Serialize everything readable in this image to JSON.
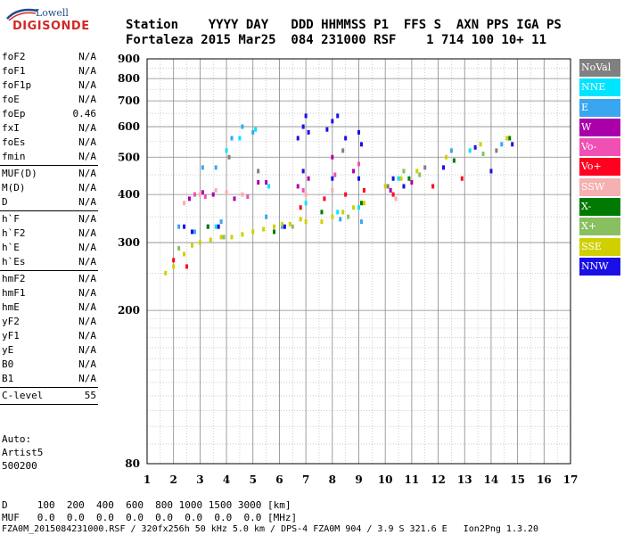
{
  "logo": {
    "line1": "Lowell",
    "line2": "DIGISONDE"
  },
  "header": {
    "labels_line": "Station    YYYY DAY   DDD HHMMSS P1  FFS S  AXN PPS IGA PS",
    "values_line": "Fortaleza 2015 Mar25  084 231000 RSF    1 714 100 10+ 11"
  },
  "params": {
    "group1": [
      {
        "name": "foF2",
        "value": "N/A"
      },
      {
        "name": "foF1",
        "value": "N/A"
      },
      {
        "name": "foF1p",
        "value": "N/A"
      },
      {
        "name": "foE",
        "value": "N/A"
      },
      {
        "name": "foEp",
        "value": "0.46"
      },
      {
        "name": "fxI",
        "value": "N/A"
      },
      {
        "name": "foEs",
        "value": "N/A"
      },
      {
        "name": "fmin",
        "value": "N/A"
      }
    ],
    "group2": [
      {
        "name": "MUF(D)",
        "value": "N/A"
      },
      {
        "name": "M(D)",
        "value": "N/A"
      },
      {
        "name": "D",
        "value": "N/A"
      }
    ],
    "group3": [
      {
        "name": "h`F",
        "value": "N/A"
      },
      {
        "name": "h`F2",
        "value": "N/A"
      },
      {
        "name": "h`E",
        "value": "N/A"
      },
      {
        "name": "h`Es",
        "value": "N/A"
      }
    ],
    "group4": [
      {
        "name": "hmF2",
        "value": "N/A"
      },
      {
        "name": "hmF1",
        "value": "N/A"
      },
      {
        "name": "hmE",
        "value": "N/A"
      },
      {
        "name": "yF2",
        "value": "N/A"
      },
      {
        "name": "yF1",
        "value": "N/A"
      },
      {
        "name": "yE",
        "value": "N/A"
      },
      {
        "name": "B0",
        "value": "N/A"
      },
      {
        "name": "B1",
        "value": "N/A"
      }
    ],
    "clevel": {
      "name": "C-level",
      "value": "55"
    }
  },
  "auto": {
    "line1": "Auto:",
    "line2": "Artist5",
    "line3": "500200"
  },
  "footer": {
    "d_line": "D     100  200  400  600  800 1000 1500 3000 [km]",
    "muf_line": "MUF   0.0  0.0  0.0  0.0  0.0  0.0  0.0  0.0 [MHz]",
    "file_line": "FZA0M_2015084231000.RSF / 320fx256h 50 kHz 5.0 km / DPS-4 FZA0M 904 / 3.9 S 321.6 E   Ion2Png 1.3.20"
  },
  "legend": [
    {
      "label": "NoVal",
      "color": "#808080"
    },
    {
      "label": "NNE",
      "color": "#00e5ff"
    },
    {
      "label": "E",
      "color": "#3aa6f0"
    },
    {
      "label": "W",
      "color": "#aa00aa"
    },
    {
      "label": "Vo-",
      "color": "#f050b4"
    },
    {
      "label": "Vo+",
      "color": "#ff0020"
    },
    {
      "label": "SSW",
      "color": "#f5b0b0"
    },
    {
      "label": "X-",
      "color": "#007a00"
    },
    {
      "label": "X+",
      "color": "#88c060"
    },
    {
      "label": "SSE",
      "color": "#d0d000"
    },
    {
      "label": "NNW",
      "color": "#1a10e6"
    }
  ],
  "chart_data": {
    "type": "scatter",
    "title": "",
    "xlabel": "",
    "ylabel": "",
    "xlim": [
      1,
      17
    ],
    "ylim": [
      80,
      900
    ],
    "y_scale": "log",
    "x_ticks": [
      1,
      2,
      3,
      4,
      5,
      6,
      7,
      8,
      9,
      10,
      11,
      12,
      13,
      14,
      15,
      16,
      17
    ],
    "y_ticks": [
      80,
      200,
      300,
      400,
      500,
      600,
      700,
      800,
      900
    ],
    "grid": true,
    "series": [
      {
        "name": "NoVal",
        "color": "#808080",
        "points": [
          [
            4.1,
            500
          ],
          [
            5.2,
            460
          ],
          [
            8.4,
            520
          ],
          [
            10.1,
            420
          ],
          [
            11.5,
            470
          ],
          [
            14.2,
            520
          ]
        ]
      },
      {
        "name": "NNE",
        "color": "#00e5ff",
        "points": [
          [
            3.6,
            330
          ],
          [
            4.0,
            520
          ],
          [
            4.5,
            560
          ],
          [
            5.1,
            590
          ],
          [
            5.6,
            420
          ],
          [
            7.0,
            380
          ],
          [
            8.2,
            360
          ],
          [
            9.0,
            370
          ],
          [
            10.5,
            440
          ],
          [
            13.2,
            520
          ]
        ]
      },
      {
        "name": "E",
        "color": "#3aa6f0",
        "points": [
          [
            2.2,
            330
          ],
          [
            2.8,
            320
          ],
          [
            3.3,
            330
          ],
          [
            3.8,
            340
          ],
          [
            4.2,
            560
          ],
          [
            4.6,
            600
          ],
          [
            5.0,
            580
          ],
          [
            5.5,
            350
          ],
          [
            6.1,
            330
          ],
          [
            8.3,
            345
          ],
          [
            9.1,
            340
          ],
          [
            3.1,
            470
          ],
          [
            3.6,
            470
          ],
          [
            12.5,
            520
          ],
          [
            14.4,
            540
          ]
        ]
      },
      {
        "name": "W",
        "color": "#aa00aa",
        "points": [
          [
            2.6,
            390
          ],
          [
            3.1,
            405
          ],
          [
            3.5,
            400
          ],
          [
            4.3,
            390
          ],
          [
            5.2,
            430
          ],
          [
            5.5,
            430
          ],
          [
            6.7,
            420
          ],
          [
            7.1,
            440
          ],
          [
            8.0,
            500
          ],
          [
            8.8,
            460
          ],
          [
            10.2,
            410
          ],
          [
            11.0,
            430
          ]
        ]
      },
      {
        "name": "Vo-",
        "color": "#f050b4",
        "points": [
          [
            2.8,
            400
          ],
          [
            3.2,
            395
          ],
          [
            4.8,
            395
          ],
          [
            6.9,
            410
          ],
          [
            8.1,
            450
          ],
          [
            9.0,
            480
          ]
        ]
      },
      {
        "name": "Vo+",
        "color": "#ff0020",
        "points": [
          [
            2.0,
            270
          ],
          [
            2.5,
            260
          ],
          [
            6.8,
            370
          ],
          [
            7.7,
            390
          ],
          [
            8.5,
            400
          ],
          [
            9.2,
            410
          ],
          [
            10.3,
            400
          ],
          [
            11.8,
            420
          ],
          [
            12.9,
            440
          ]
        ]
      },
      {
        "name": "SSW",
        "color": "#f5b0b0",
        "points": [
          [
            2.4,
            380
          ],
          [
            3.0,
            400
          ],
          [
            3.6,
            410
          ],
          [
            4.0,
            405
          ],
          [
            4.6,
            400
          ],
          [
            7.0,
            400
          ],
          [
            8.0,
            410
          ],
          [
            10.4,
            390
          ]
        ]
      },
      {
        "name": "X-",
        "color": "#007a00",
        "points": [
          [
            3.3,
            330
          ],
          [
            5.8,
            320
          ],
          [
            7.6,
            360
          ],
          [
            9.1,
            380
          ],
          [
            10.9,
            440
          ],
          [
            12.6,
            490
          ],
          [
            14.7,
            560
          ]
        ]
      },
      {
        "name": "X+",
        "color": "#88c060",
        "points": [
          [
            2.2,
            290
          ],
          [
            3.9,
            310
          ],
          [
            6.5,
            330
          ],
          [
            8.6,
            350
          ],
          [
            10.7,
            460
          ],
          [
            11.3,
            450
          ],
          [
            13.7,
            510
          ]
        ]
      },
      {
        "name": "SSE",
        "color": "#d0d000",
        "points": [
          [
            1.7,
            250
          ],
          [
            2.0,
            260
          ],
          [
            2.4,
            280
          ],
          [
            2.7,
            295
          ],
          [
            3.0,
            300
          ],
          [
            3.4,
            305
          ],
          [
            3.8,
            310
          ],
          [
            4.2,
            310
          ],
          [
            4.6,
            315
          ],
          [
            5.0,
            320
          ],
          [
            5.4,
            325
          ],
          [
            5.8,
            330
          ],
          [
            6.1,
            335
          ],
          [
            6.4,
            335
          ],
          [
            6.8,
            345
          ],
          [
            7.0,
            340
          ],
          [
            7.6,
            340
          ],
          [
            8.0,
            350
          ],
          [
            8.4,
            360
          ],
          [
            8.8,
            370
          ],
          [
            9.2,
            380
          ],
          [
            10.0,
            420
          ],
          [
            10.6,
            440
          ],
          [
            11.2,
            460
          ],
          [
            12.3,
            500
          ],
          [
            13.6,
            540
          ],
          [
            14.6,
            560
          ]
        ]
      },
      {
        "name": "NNW",
        "color": "#1a10e6",
        "points": [
          [
            2.4,
            330
          ],
          [
            2.7,
            320
          ],
          [
            6.7,
            560
          ],
          [
            6.9,
            600
          ],
          [
            7.0,
            640
          ],
          [
            7.1,
            580
          ],
          [
            7.8,
            590
          ],
          [
            8.0,
            620
          ],
          [
            8.2,
            640
          ],
          [
            8.5,
            560
          ],
          [
            9.0,
            580
          ],
          [
            9.1,
            540
          ],
          [
            9.0,
            440
          ],
          [
            8.0,
            440
          ],
          [
            6.9,
            460
          ],
          [
            10.3,
            440
          ],
          [
            10.7,
            420
          ],
          [
            12.2,
            470
          ],
          [
            13.4,
            530
          ],
          [
            14.0,
            460
          ],
          [
            14.8,
            540
          ],
          [
            3.7,
            330
          ],
          [
            6.2,
            330
          ]
        ]
      }
    ]
  }
}
